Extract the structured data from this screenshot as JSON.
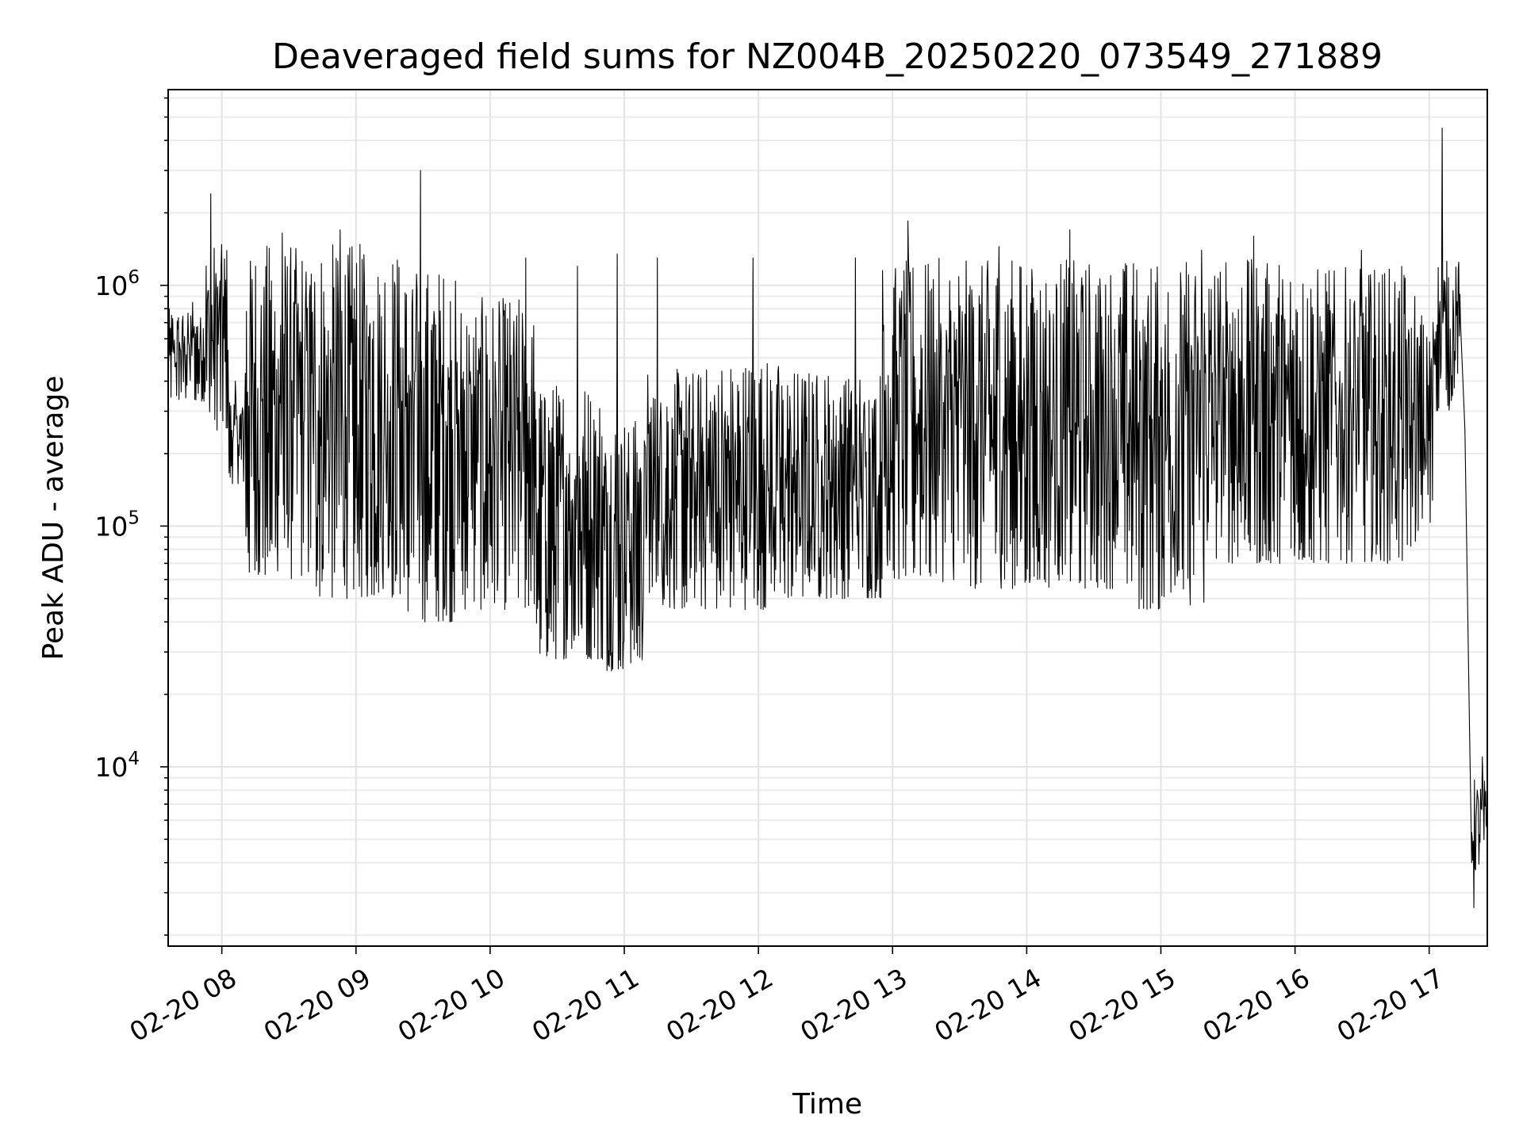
{
  "chart_data": {
    "type": "line",
    "title": "Deaveraged field sums for NZ004B_20250220_073549_271889",
    "xlabel": "Time",
    "ylabel": "Peak ADU - average",
    "yscale": "log",
    "grid": true,
    "x_tick_labels": [
      "02-20 08",
      "02-20 09",
      "02-20 10",
      "02-20 11",
      "02-20 12",
      "02-20 13",
      "02-20 14",
      "02-20 15",
      "02-20 16",
      "02-20 17"
    ],
    "x_ticks": [
      "2025-02-20T08:00",
      "2025-02-20T09:00",
      "2025-02-20T10:00",
      "2025-02-20T11:00",
      "2025-02-20T12:00",
      "2025-02-20T13:00",
      "2025-02-20T14:00",
      "2025-02-20T15:00",
      "2025-02-20T16:00",
      "2025-02-20T17:00"
    ],
    "xlim": [
      "2025-02-20T07:36",
      "2025-02-20T17:26"
    ],
    "y_tick_labels": [
      {
        "base": "10",
        "exp": "4",
        "value": 10000
      },
      {
        "base": "10",
        "exp": "5",
        "value": 100000
      },
      {
        "base": "10",
        "exp": "6",
        "value": 1000000
      }
    ],
    "ylim": [
      1800,
      6500000
    ],
    "series": [
      {
        "color": "#000000",
        "segments": [
          {
            "start": "2025-02-20T07:36",
            "end": "2025-02-20T07:53",
            "low": 330000,
            "high": 800000,
            "spike": 850000
          },
          {
            "start": "2025-02-20T07:53",
            "end": "2025-02-20T08:03",
            "low": 250000,
            "high": 1500000,
            "spike": 2400000
          },
          {
            "start": "2025-02-20T08:03",
            "end": "2025-02-20T08:10",
            "low": 150000,
            "high": 350000,
            "spike": 400000
          },
          {
            "start": "2025-02-20T08:10",
            "end": "2025-02-20T08:40",
            "low": 60000,
            "high": 1500000,
            "spike": 1650000
          },
          {
            "start": "2025-02-20T08:40",
            "end": "2025-02-20T09:20",
            "low": 50000,
            "high": 1500000,
            "spike": 1700000
          },
          {
            "start": "2025-02-20T09:20",
            "end": "2025-02-20T09:45",
            "low": 40000,
            "high": 1200000,
            "spike": 3000000
          },
          {
            "start": "2025-02-20T09:45",
            "end": "2025-02-20T10:20",
            "low": 45000,
            "high": 900000,
            "spike": 1300000
          },
          {
            "start": "2025-02-20T10:20",
            "end": "2025-02-20T10:50",
            "low": 28000,
            "high": 400000,
            "spike": 1200000
          },
          {
            "start": "2025-02-20T10:50",
            "end": "2025-02-20T11:10",
            "low": 25000,
            "high": 300000,
            "spike": 1350000
          },
          {
            "start": "2025-02-20T11:10",
            "end": "2025-02-20T11:35",
            "low": 45000,
            "high": 450000,
            "spike": 1300000
          },
          {
            "start": "2025-02-20T11:35",
            "end": "2025-02-20T12:10",
            "low": 45000,
            "high": 500000,
            "spike": 1300000
          },
          {
            "start": "2025-02-20T12:10",
            "end": "2025-02-20T12:55",
            "low": 50000,
            "high": 450000,
            "spike": 1300000
          },
          {
            "start": "2025-02-20T12:55",
            "end": "2025-02-20T13:20",
            "low": 60000,
            "high": 1300000,
            "spike": 1850000
          },
          {
            "start": "2025-02-20T13:20",
            "end": "2025-02-20T14:00",
            "low": 55000,
            "high": 1300000,
            "spike": 1450000
          },
          {
            "start": "2025-02-20T14:00",
            "end": "2025-02-20T14:50",
            "low": 55000,
            "high": 1300000,
            "spike": 1700000
          },
          {
            "start": "2025-02-20T14:50",
            "end": "2025-02-20T15:20",
            "low": 45000,
            "high": 1300000,
            "spike": 1400000
          },
          {
            "start": "2025-02-20T15:20",
            "end": "2025-02-20T16:00",
            "low": 70000,
            "high": 1300000,
            "spike": 1600000
          },
          {
            "start": "2025-02-20T16:00",
            "end": "2025-02-20T16:50",
            "low": 70000,
            "high": 1200000,
            "spike": 1400000
          },
          {
            "start": "2025-02-20T16:50",
            "end": "2025-02-20T17:02",
            "low": 80000,
            "high": 800000,
            "spike": 900000
          },
          {
            "start": "2025-02-20T17:02",
            "end": "2025-02-20T17:14",
            "low": 300000,
            "high": 1300000,
            "spike": 4500000
          }
        ],
        "descent": [
          {
            "t": "2025-02-20T17:14",
            "v": 700000
          },
          {
            "t": "2025-02-20T17:16",
            "v": 250000
          },
          {
            "t": "2025-02-20T17:18",
            "v": 15000
          },
          {
            "t": "2025-02-20T17:19",
            "v": 4000
          }
        ],
        "tail": {
          "start": "2025-02-20T17:19",
          "end": "2025-02-20T17:26",
          "low": 3500,
          "high": 9000,
          "spike": 11000,
          "min": 2600
        }
      }
    ]
  }
}
